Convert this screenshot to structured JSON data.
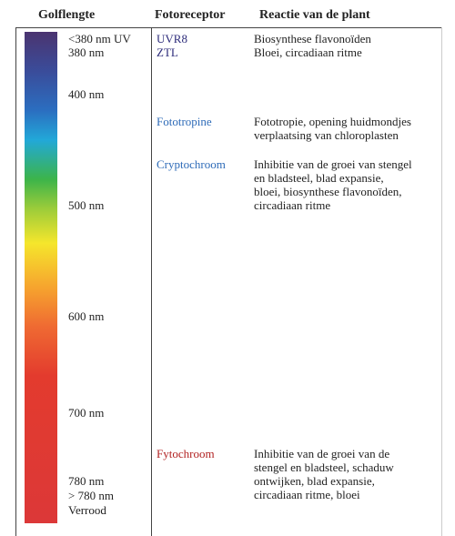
{
  "header": {
    "wavelength": "Golflengte",
    "receptor": "Fotoreceptor",
    "reaction": "Reactie van de plant"
  },
  "wavelengths": [
    "<380 nm UV",
    "380 nm",
    "400 nm",
    "500 nm",
    "600 nm",
    "700 nm",
    "780 nm",
    "> 780 nm",
    "Verrood"
  ],
  "rows": [
    {
      "receptor": "UVR8",
      "reaction": [
        "Biosynthese flavonoïden"
      ]
    },
    {
      "receptor": "ZTL",
      "reaction": [
        "Bloei, circadiaan ritme"
      ]
    },
    {
      "receptor": "Fototropine",
      "reaction": [
        "Fototropie, opening huidmondjes",
        "verplaatsing van chloroplasten"
      ]
    },
    {
      "receptor": "Cryptochroom",
      "reaction": [
        "Inhibitie van de groei van stengel",
        "en bladsteel, blad expansie,",
        "bloei, biosynthese flavonoïden,",
        "circadiaan ritme"
      ]
    },
    {
      "receptor": "Fytochroom",
      "reaction": [
        "Inhibitie van de groei van de",
        "stengel en bladsteel, schaduw",
        "ontwijken, blad expansie,",
        "circadiaan ritme, bloei"
      ]
    }
  ]
}
